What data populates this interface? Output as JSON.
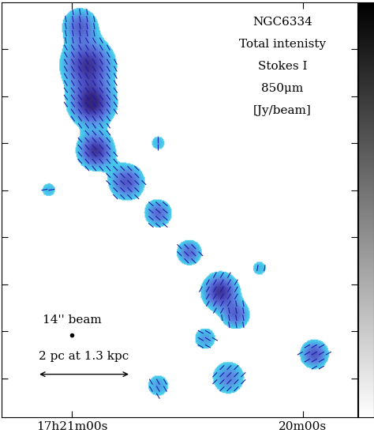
{
  "chart_data": {
    "type": "polarization_map",
    "label_lines": [
      "NGC6334",
      "Total intenisty",
      "Stokes I",
      "850μm",
      "[Jy/beam]"
    ],
    "xlim": [
      1278.3,
      1185.8
    ],
    "xticks": [
      {
        "value": 1260,
        "label": "17h21m00s"
      },
      {
        "value": 1200,
        "label": "20m00s"
      }
    ],
    "ylim": [
      0,
      53
    ],
    "yticks": [
      5,
      11,
      17,
      23,
      29,
      35,
      41,
      47
    ],
    "tick_labels": "x",
    "color": "#1c1ca8",
    "colorbar_range": [
      0,
      1
    ],
    "threshold": 0.2,
    "clumps": {
      "ra": [
        1258.0,
        1255.9,
        1254.9,
        1253.9,
        1245.8,
        1237.6,
        1229.5,
        1221.4,
        1217.3,
        1225.4,
        1219.3,
        1237.6,
        1196.9,
        1266.1,
        1237.6,
        1211.2
      ],
      "dec": [
        50,
        45,
        40,
        34,
        30,
        26,
        21,
        16,
        13,
        10,
        5,
        4,
        8,
        29,
        35,
        19
      ],
      "sigma_ra": [
        3.0,
        4.3,
        3.7,
        3.0,
        3.0,
        2.4,
        2.2,
        3.0,
        2.4,
        2.2,
        3.0,
        2.2,
        2.4,
        1.8,
        1.8,
        1.8
      ],
      "sigma_dec": [
        1.5,
        2.1,
        1.8,
        1.5,
        1.5,
        1.2,
        1.1,
        1.5,
        1.2,
        1.1,
        1.5,
        1.1,
        1.2,
        0.9,
        0.9,
        0.9
      ],
      "peak": [
        0.6,
        0.9,
        1.0,
        0.9,
        0.7,
        0.6,
        0.6,
        0.9,
        0.6,
        0.4,
        0.5,
        0.4,
        0.7,
        0.3,
        0.3,
        0.3
      ],
      "angle": [
        100,
        120,
        125,
        130,
        135,
        140,
        135,
        60,
        100,
        150,
        45,
        120,
        30,
        10,
        90,
        80
      ]
    },
    "beam": {
      "label": "14'' beam",
      "ra": 1260,
      "dec": 10.5
    },
    "scalebar": {
      "label": "2 pc at 1.3 kpc",
      "ra": [
        1269.1,
        1244.7
      ],
      "dec": 5.5
    }
  }
}
